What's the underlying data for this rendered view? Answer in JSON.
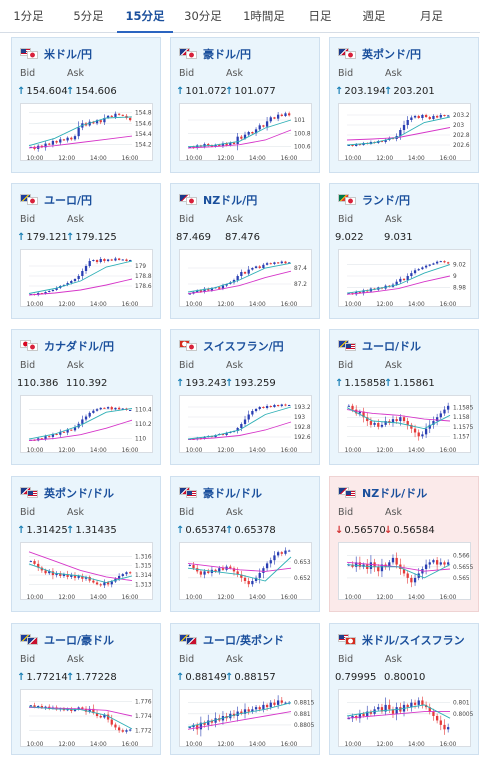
{
  "tabs": [
    {
      "label": "1分足",
      "active": false
    },
    {
      "label": "5分足",
      "active": false
    },
    {
      "label": "15分足",
      "active": true
    },
    {
      "label": "30分足",
      "active": false
    },
    {
      "label": "1時間足",
      "active": false
    },
    {
      "label": "日足",
      "active": false
    },
    {
      "label": "週足",
      "active": false
    },
    {
      "label": "月足",
      "active": false
    }
  ],
  "labels": {
    "bid": "Bid",
    "ask": "Ask"
  },
  "colors": {
    "bull": "#2a3fb3",
    "bear": "#e43a3a",
    "ma_short": "#2fb0b6",
    "ma_long": "#d636c9",
    "up_arrow": "#1a7fb5",
    "down_arrow": "#d23030"
  },
  "cards": [
    {
      "name": "米ドル/円",
      "bid": "154.604",
      "ask": "154.606",
      "bid_dir": "up",
      "ask_dir": "up",
      "state": "up",
      "flags": [
        "us",
        "jp"
      ]
    },
    {
      "name": "豪ドル/円",
      "bid": "101.072",
      "ask": "101.077",
      "bid_dir": "up",
      "ask_dir": "up",
      "state": "up",
      "flags": [
        "au",
        "jp"
      ]
    },
    {
      "name": "英ポンド/円",
      "bid": "203.194",
      "ask": "203.201",
      "bid_dir": "up",
      "ask_dir": "up",
      "state": "up",
      "flags": [
        "gb",
        "jp"
      ]
    },
    {
      "name": "ユーロ/円",
      "bid": "179.121",
      "ask": "179.125",
      "bid_dir": "up",
      "ask_dir": "up",
      "state": "up",
      "flags": [
        "eu",
        "jp"
      ]
    },
    {
      "name": "NZドル/円",
      "bid": "87.469",
      "ask": "87.476",
      "bid_dir": "none",
      "ask_dir": "none",
      "state": "up",
      "flags": [
        "nz",
        "jp"
      ]
    },
    {
      "name": "ランド/円",
      "bid": "9.022",
      "ask": "9.031",
      "bid_dir": "none",
      "ask_dir": "none",
      "state": "up",
      "flags": [
        "za",
        "jp"
      ]
    },
    {
      "name": "カナダドル/円",
      "bid": "110.386",
      "ask": "110.392",
      "bid_dir": "none",
      "ask_dir": "none",
      "state": "up",
      "flags": [
        "ca",
        "jp"
      ]
    },
    {
      "name": "スイスフラン/円",
      "bid": "193.243",
      "ask": "193.259",
      "bid_dir": "up",
      "ask_dir": "up",
      "state": "up",
      "flags": [
        "ch",
        "jp"
      ]
    },
    {
      "name": "ユーロ/ドル",
      "bid": "1.15858",
      "ask": "1.15861",
      "bid_dir": "up",
      "ask_dir": "up",
      "state": "up",
      "flags": [
        "eu",
        "us"
      ]
    },
    {
      "name": "英ポンド/ドル",
      "bid": "1.31425",
      "ask": "1.31435",
      "bid_dir": "up",
      "ask_dir": "up",
      "state": "up",
      "flags": [
        "gb",
        "us"
      ]
    },
    {
      "name": "豪ドル/ドル",
      "bid": "0.65374",
      "ask": "0.65378",
      "bid_dir": "up",
      "ask_dir": "up",
      "state": "up",
      "flags": [
        "au",
        "us"
      ]
    },
    {
      "name": "NZドル/ドル",
      "bid": "0.56570",
      "ask": "0.56584",
      "bid_dir": "down",
      "ask_dir": "down",
      "state": "down",
      "flags": [
        "nz",
        "us"
      ]
    },
    {
      "name": "ユーロ/豪ドル",
      "bid": "1.77214",
      "ask": "1.77228",
      "bid_dir": "up",
      "ask_dir": "up",
      "state": "up",
      "flags": [
        "eu",
        "au"
      ]
    },
    {
      "name": "ユーロ/英ポンド",
      "bid": "0.88149",
      "ask": "0.88157",
      "bid_dir": "up",
      "ask_dir": "up",
      "state": "up",
      "flags": [
        "eu",
        "gb"
      ]
    },
    {
      "name": "米ドル/スイスフラン",
      "bid": "0.79995",
      "ask": "0.80010",
      "bid_dir": "none",
      "ask_dir": "none",
      "state": "none",
      "flags": [
        "us",
        "ch"
      ]
    }
  ],
  "chart_data": [
    {
      "type": "candlestick",
      "pair": "米ドル/円",
      "x_ticks": [
        "10:00",
        "12:00",
        "14:00",
        "16:00"
      ],
      "y_ticks": [
        "154.8",
        "154.6",
        "154.4",
        "154.2"
      ],
      "ylim": [
        154.1,
        154.85
      ],
      "trend": [
        154.16,
        154.12,
        154.18,
        154.15,
        154.22,
        154.2,
        154.27,
        154.24,
        154.3,
        154.28,
        154.33,
        154.3,
        154.36,
        154.52,
        154.6,
        154.56,
        154.63,
        154.6,
        154.66,
        154.62,
        154.7,
        154.74,
        154.72,
        154.78,
        154.76,
        154.74,
        154.7,
        154.66
      ],
      "ma_short": [
        154.18,
        154.32,
        154.55,
        154.7,
        154.72
      ],
      "ma_long": [
        154.14,
        154.18,
        154.24,
        154.3,
        154.36
      ]
    },
    {
      "type": "candlestick",
      "pair": "豪ドル/円",
      "x_ticks": [
        "10:00",
        "12:00",
        "14:00",
        "16:00"
      ],
      "y_ticks": [
        "101",
        "100.8",
        "100.6"
      ],
      "ylim": [
        100.55,
        101.15
      ],
      "trend": [
        100.6,
        100.58,
        100.62,
        100.6,
        100.64,
        100.62,
        100.6,
        100.63,
        100.61,
        100.65,
        100.62,
        100.66,
        100.64,
        100.75,
        100.72,
        100.78,
        100.82,
        100.8,
        100.86,
        100.92,
        100.9,
        100.98,
        101.04,
        101.02,
        101.08,
        101.06,
        101.1,
        101.07
      ],
      "ma_short": [
        100.6,
        100.62,
        100.68,
        100.88,
        101.0
      ],
      "ma_long": [
        100.58,
        100.6,
        100.63,
        100.7,
        100.85
      ]
    },
    {
      "type": "candlestick",
      "pair": "英ポンド/円",
      "x_ticks": [
        "10:00",
        "12:00",
        "14:00",
        "16:00"
      ],
      "y_ticks": [
        "203.2",
        "203",
        "202.8",
        "202.6"
      ],
      "ylim": [
        202.5,
        203.3
      ],
      "trend": [
        202.6,
        202.58,
        202.62,
        202.6,
        202.64,
        202.62,
        202.66,
        202.64,
        202.68,
        202.66,
        202.7,
        202.74,
        202.72,
        202.78,
        202.9,
        203.0,
        203.1,
        203.15,
        203.18,
        203.14,
        203.2,
        203.16,
        203.12,
        203.18,
        203.15,
        203.2,
        203.18,
        203.19
      ],
      "ma_short": [
        202.6,
        202.64,
        202.76,
        203.05,
        203.16
      ],
      "ma_long": [
        202.7,
        202.72,
        202.75,
        202.85,
        202.95
      ]
    },
    {
      "type": "candlestick",
      "pair": "ユーロ/円",
      "x_ticks": [
        "10:00",
        "12:00",
        "14:00",
        "16:00"
      ],
      "y_ticks": [
        "179",
        "178.8",
        "178.6"
      ],
      "ylim": [
        178.4,
        179.2
      ],
      "trend": [
        178.44,
        178.42,
        178.46,
        178.45,
        178.48,
        178.5,
        178.52,
        178.56,
        178.6,
        178.62,
        178.66,
        178.7,
        178.74,
        178.8,
        178.9,
        179.0,
        179.1,
        179.12,
        179.08,
        179.14,
        179.1,
        179.13,
        179.11,
        179.15,
        179.12,
        179.13,
        179.1,
        179.12
      ],
      "ma_short": [
        178.45,
        178.55,
        178.7,
        178.98,
        179.1
      ],
      "ma_long": [
        178.42,
        178.46,
        178.52,
        178.62,
        178.74
      ]
    },
    {
      "type": "candlestick",
      "pair": "NZドル/円",
      "x_ticks": [
        "10:00",
        "12:00",
        "14:00",
        "16:00"
      ],
      "y_ticks": [
        "87.4",
        "87.2"
      ],
      "ylim": [
        87.05,
        87.55
      ],
      "trend": [
        87.08,
        87.1,
        87.12,
        87.1,
        87.14,
        87.12,
        87.15,
        87.16,
        87.14,
        87.18,
        87.2,
        87.22,
        87.25,
        87.3,
        87.35,
        87.33,
        87.38,
        87.4,
        87.42,
        87.4,
        87.44,
        87.46,
        87.45,
        87.47,
        87.46,
        87.48,
        87.46,
        87.47
      ],
      "ma_short": [
        87.1,
        87.15,
        87.25,
        87.4,
        87.46
      ],
      "ma_long": [
        87.08,
        87.12,
        87.18,
        87.28,
        87.36
      ]
    },
    {
      "type": "candlestick",
      "pair": "ランド/円",
      "x_ticks": [
        "10:00",
        "12:00",
        "14:00",
        "16:00"
      ],
      "y_ticks": [
        "9.02",
        "9",
        "8.98"
      ],
      "ylim": [
        8.965,
        9.035
      ],
      "trend": [
        8.97,
        8.968,
        8.972,
        8.97,
        8.975,
        8.973,
        8.978,
        8.976,
        8.98,
        8.978,
        8.983,
        8.981,
        8.985,
        8.99,
        8.995,
        8.993,
        9.0,
        9.005,
        9.01,
        9.012,
        9.015,
        9.018,
        9.02,
        9.022,
        9.025,
        9.026,
        9.024,
        9.022
      ],
      "ma_short": [
        8.97,
        8.976,
        8.985,
        9.005,
        9.02
      ],
      "ma_long": [
        8.968,
        8.972,
        8.978,
        8.99,
        9.0
      ]
    },
    {
      "type": "candlestick",
      "pair": "カナダドル/円",
      "x_ticks": [
        "10:00",
        "12:00",
        "14:00",
        "16:00"
      ],
      "y_ticks": [
        "110.4",
        "110.2",
        "110"
      ],
      "ylim": [
        109.95,
        110.5
      ],
      "trend": [
        109.98,
        109.97,
        110.0,
        109.99,
        110.03,
        110.02,
        110.06,
        110.05,
        110.09,
        110.08,
        110.12,
        110.11,
        110.15,
        110.2,
        110.26,
        110.3,
        110.35,
        110.38,
        110.4,
        110.42,
        110.41,
        110.43,
        110.4,
        110.42,
        110.4,
        110.41,
        110.39,
        110.39
      ],
      "ma_short": [
        109.99,
        110.06,
        110.18,
        110.36,
        110.41
      ],
      "ma_long": [
        109.97,
        110.0,
        110.05,
        110.14,
        110.25
      ]
    },
    {
      "type": "candlestick",
      "pair": "スイスフラン/円",
      "x_ticks": [
        "10:00",
        "12:00",
        "14:00",
        "16:00"
      ],
      "y_ticks": [
        "193.2",
        "193",
        "192.8",
        "192.6"
      ],
      "ylim": [
        192.5,
        193.3
      ],
      "trend": [
        192.56,
        192.55,
        192.58,
        192.56,
        192.6,
        192.62,
        192.6,
        192.64,
        192.66,
        192.64,
        192.68,
        192.7,
        192.72,
        192.78,
        192.86,
        192.95,
        193.05,
        193.12,
        193.16,
        193.2,
        193.18,
        193.22,
        193.2,
        193.24,
        193.22,
        193.25,
        193.23,
        193.24
      ],
      "ma_short": [
        192.56,
        192.62,
        192.74,
        193.05,
        193.2
      ],
      "ma_long": [
        192.55,
        192.58,
        192.63,
        192.74,
        192.9
      ]
    },
    {
      "type": "candlestick",
      "pair": "ユーロ/ドル",
      "x_ticks": [
        "10:00",
        "12:00",
        "14:00",
        "16:00"
      ],
      "y_ticks": [
        "1.1585",
        "1.158",
        "1.1575",
        "1.157"
      ],
      "ylim": [
        1.1567,
        1.1588
      ],
      "trend": [
        1.1586,
        1.1584,
        1.1582,
        1.1583,
        1.158,
        1.1578,
        1.1576,
        1.1577,
        1.1575,
        1.1576,
        1.1578,
        1.1577,
        1.1579,
        1.1578,
        1.158,
        1.1578,
        1.1576,
        1.1574,
        1.1572,
        1.157,
        1.1571,
        1.1574,
        1.1576,
        1.1578,
        1.158,
        1.1582,
        1.1584,
        1.1586
      ],
      "ma_short": [
        1.1585,
        1.1578,
        1.1577,
        1.1574,
        1.1581
      ],
      "ma_long": [
        1.1584,
        1.1582,
        1.1581,
        1.1579,
        1.1578
      ]
    },
    {
      "type": "candlestick",
      "pair": "英ポンド/ドル",
      "x_ticks": [
        "10:00",
        "12:00",
        "14:00",
        "16:00"
      ],
      "y_ticks": [
        "1.316",
        "1.315",
        "1.314",
        "1.313"
      ],
      "ylim": [
        1.3125,
        1.3168
      ],
      "trend": [
        1.3155,
        1.3152,
        1.3148,
        1.3145,
        1.3142,
        1.3144,
        1.314,
        1.3142,
        1.3139,
        1.3141,
        1.3138,
        1.314,
        1.3137,
        1.3139,
        1.3136,
        1.3138,
        1.3134,
        1.3132,
        1.313,
        1.3129,
        1.3132,
        1.313,
        1.3133,
        1.3136,
        1.3139,
        1.3141,
        1.3143,
        1.3142
      ],
      "ma_short": [
        1.3152,
        1.3142,
        1.3139,
        1.3132,
        1.3139
      ],
      "ma_long": [
        1.3165,
        1.3155,
        1.3145,
        1.3138,
        1.3134
      ]
    },
    {
      "type": "candlestick",
      "pair": "豪ドル/ドル",
      "x_ticks": [
        "10:00",
        "12:00",
        "14:00",
        "16:00"
      ],
      "y_ticks": [
        "0.653",
        "0.652"
      ],
      "ylim": [
        0.6513,
        0.6538
      ],
      "trend": [
        0.6528,
        0.6526,
        0.6524,
        0.6522,
        0.6524,
        0.6523,
        0.6525,
        0.6524,
        0.6526,
        0.6525,
        0.6527,
        0.6526,
        0.6524,
        0.6522,
        0.652,
        0.6518,
        0.6516,
        0.6518,
        0.652,
        0.6523,
        0.6526,
        0.6529,
        0.6531,
        0.6534,
        0.6536,
        0.6535,
        0.6537,
        0.6537
      ],
      "ma_short": [
        0.6526,
        0.6524,
        0.6522,
        0.6518,
        0.6533
      ],
      "ma_long": [
        0.6529,
        0.6527,
        0.6525,
        0.6524,
        0.6526
      ]
    },
    {
      "type": "candlestick",
      "pair": "NZドル/ドル",
      "x_ticks": [
        "10:00",
        "12:00",
        "14:00",
        "16:00"
      ],
      "y_ticks": [
        "0.566",
        "0.5655",
        "0.565"
      ],
      "ylim": [
        0.5645,
        0.5663
      ],
      "trend": [
        0.5656,
        0.5655,
        0.5657,
        0.5655,
        0.5656,
        0.5654,
        0.5657,
        0.5655,
        0.5653,
        0.5656,
        0.5655,
        0.5657,
        0.5659,
        0.5656,
        0.5654,
        0.5652,
        0.565,
        0.5648,
        0.565,
        0.5652,
        0.5654,
        0.5656,
        0.5657,
        0.5658,
        0.5656,
        0.5657,
        0.5656,
        0.5657
      ],
      "ma_short": [
        0.5656,
        0.5655,
        0.5655,
        0.565,
        0.5656
      ],
      "ma_long": [
        0.5657,
        0.5656,
        0.5655,
        0.5653,
        0.5654
      ]
    },
    {
      "type": "candlestick",
      "pair": "ユーロ/豪ドル",
      "x_ticks": [
        "10:00",
        "12:00",
        "14:00",
        "16:00"
      ],
      "y_ticks": [
        "1.776",
        "1.774",
        "1.772"
      ],
      "ylim": [
        1.7712,
        1.7768
      ],
      "trend": [
        1.7755,
        1.7752,
        1.7754,
        1.7751,
        1.7753,
        1.775,
        1.7752,
        1.7749,
        1.7751,
        1.7748,
        1.775,
        1.7747,
        1.7749,
        1.7752,
        1.775,
        1.7746,
        1.775,
        1.7744,
        1.774,
        1.7738,
        1.7742,
        1.7735,
        1.7728,
        1.7724,
        1.772,
        1.7718,
        1.772,
        1.7721
      ],
      "ma_short": [
        1.7753,
        1.775,
        1.7749,
        1.7741,
        1.7722
      ],
      "ma_long": [
        1.7752,
        1.7751,
        1.775,
        1.7748,
        1.774
      ]
    },
    {
      "type": "candlestick",
      "pair": "ユーロ/英ポンド",
      "x_ticks": [
        "10:00",
        "12:00",
        "14:00",
        "16:00"
      ],
      "y_ticks": [
        "0.8815",
        "0.881",
        "0.8805"
      ],
      "ylim": [
        0.88,
        0.8818
      ],
      "trend": [
        0.8804,
        0.8805,
        0.8803,
        0.8806,
        0.8805,
        0.8807,
        0.8806,
        0.8808,
        0.8807,
        0.8809,
        0.8808,
        0.881,
        0.8809,
        0.8811,
        0.881,
        0.8812,
        0.8811,
        0.8812,
        0.8813,
        0.8812,
        0.8814,
        0.8813,
        0.8815,
        0.8814,
        0.8816,
        0.8815,
        0.8815,
        0.8815
      ],
      "ma_short": [
        0.8804,
        0.8807,
        0.881,
        0.8812,
        0.8815
      ],
      "ma_long": [
        0.8803,
        0.8805,
        0.8807,
        0.8809,
        0.8811
      ]
    },
    {
      "type": "candlestick",
      "pair": "米ドル/スイスフラン",
      "x_ticks": [
        "10:00",
        "12:00",
        "14:00",
        "16:00"
      ],
      "y_ticks": [
        "0.801",
        "0.8005"
      ],
      "ylim": [
        0.7995,
        0.8013
      ],
      "trend": [
        0.8003,
        0.8004,
        0.8003,
        0.8005,
        0.8004,
        0.8006,
        0.8005,
        0.8007,
        0.8008,
        0.8006,
        0.8009,
        0.8007,
        0.8005,
        0.8008,
        0.8006,
        0.8009,
        0.8008,
        0.801,
        0.8009,
        0.8011,
        0.8009,
        0.8008,
        0.8006,
        0.8004,
        0.8002,
        0.8,
        0.7998,
        0.7999
      ],
      "ma_short": [
        0.8004,
        0.8006,
        0.8007,
        0.8009,
        0.8003
      ],
      "ma_long": [
        0.8003,
        0.8004,
        0.8005,
        0.8006,
        0.8006
      ]
    }
  ]
}
